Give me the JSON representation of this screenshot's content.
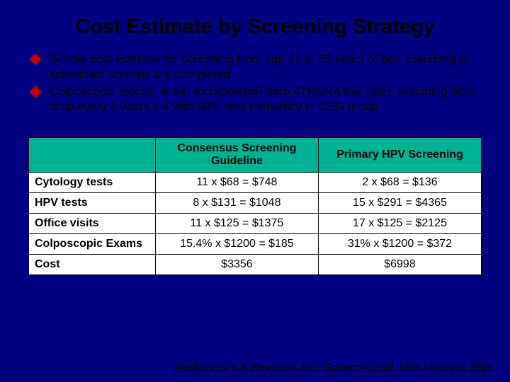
{
  "title": "Cost Estimate by Screening Strategy",
  "bullets": [
    "Simple cost estimate for screening from age 21 to 65 years of age assuming all scheduled screens are completed",
    "Colposcopic exams: linear extrapolation from ATHENA trial rates assuming 50% drop every 3 years x 4 with 50% less frequency in CSG group"
  ],
  "table": {
    "headers": {
      "corner": "",
      "col1": "Consensus Screening Guideline",
      "col2": "Primary HPV Screening"
    },
    "rows": [
      {
        "label": "Cytology tests",
        "c1": "11 x $68 = $748",
        "c2": "2 x $68 = $136"
      },
      {
        "label": "HPV tests",
        "c1": "8 x $131 = $1048",
        "c2": "15 x $291 = $4365"
      },
      {
        "label": "Office visits",
        "c1": "11 x $125 = $1375",
        "c2": "17 x $125 = $2125"
      },
      {
        "label": "Colposcopic Exams",
        "c1": "15.4% x $1200 = $185",
        "c2": "31% x $1200 = $372"
      },
      {
        "label": "Cost",
        "c1": "$3356",
        "c2": "$6998"
      }
    ]
  },
  "citation": "Analysis by R K Reynolds, MD.  Gynecol Oncol, Univ Michigan 2015",
  "colors": {
    "background": "#000080",
    "diamond": "#c00000",
    "header_bg": "#00b294"
  }
}
